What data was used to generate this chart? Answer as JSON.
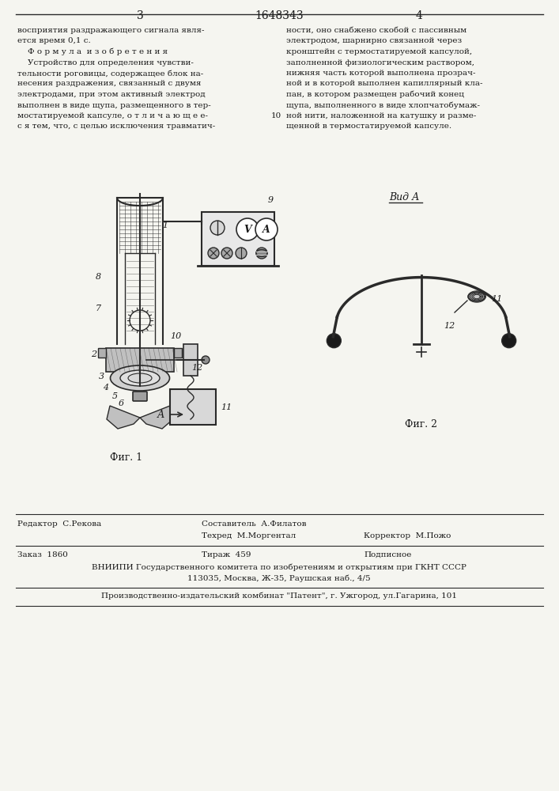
{
  "page_number_left": "3",
  "patent_number": "1648343",
  "page_number_right": "4",
  "text_left_col": [
    "восприятия раздражающего сигнала явля-",
    "ется время 0,1 с.",
    "    Ф о р м у л а  и з о б р е т е н и я",
    "    Устройство для определения чувстви-",
    "тельности роговицы, содержащее блок на-",
    "несения раздражения, связанный с двумя",
    "электродами, при этом активный электрод",
    "выполнен в виде щупа, размещенного в тер-",
    "мостатируемой капсуле, о т л и ч а ю щ е е-",
    "с я тем, что, с целью исключения травматич-"
  ],
  "line_number": "10",
  "text_right_col": [
    "ности, оно снабжено скобой с пассивным",
    "электродом, шарнирно связанной через",
    "кронштейн с термостатируемой капсулой,",
    "заполненной физиологическим раствором,",
    "нижняя часть которой выполнена прозрач-",
    "ной и в которой выполнен капиллярный кла-",
    "пан, в котором размещен рабочий конец",
    "щупа, выполненного в виде хлопчатобумаж-",
    "ной нити, наложенной на катушку и разме-",
    "щенной в термостатируемой капсуле."
  ],
  "fig1_caption": "Фиг. 1",
  "fig2_caption": "Фиг. 2",
  "vid_a_label": "Вид А",
  "arrow_a_label": "А",
  "footer_line1_left": "Редактор  С.Рекова",
  "footer_line1_mid": "Составитель  А.Филатов",
  "footer_line1_right": "",
  "footer_line2_mid": "Техред  М.Моргентал",
  "footer_line2_right": "Корректор  М.Пожо",
  "footer_line3_left": "Заказ  1860",
  "footer_line3_mid": "Тираж  459",
  "footer_line3_right": "Подписное",
  "footer_vniip": "ВНИИПИ Государственного комитета по изобретениям и открытиям при ГКНТ СССР",
  "footer_address": "113035, Москва, Ж-35, Раушская наб., 4/5",
  "footer_plant": "Производственно-издательский комбинат \"Патент\", г. Ужгород, ул.Гагарина, 101",
  "bg_color": "#f5f5f0",
  "text_color": "#1a1a1a",
  "line_color": "#2a2a2a"
}
